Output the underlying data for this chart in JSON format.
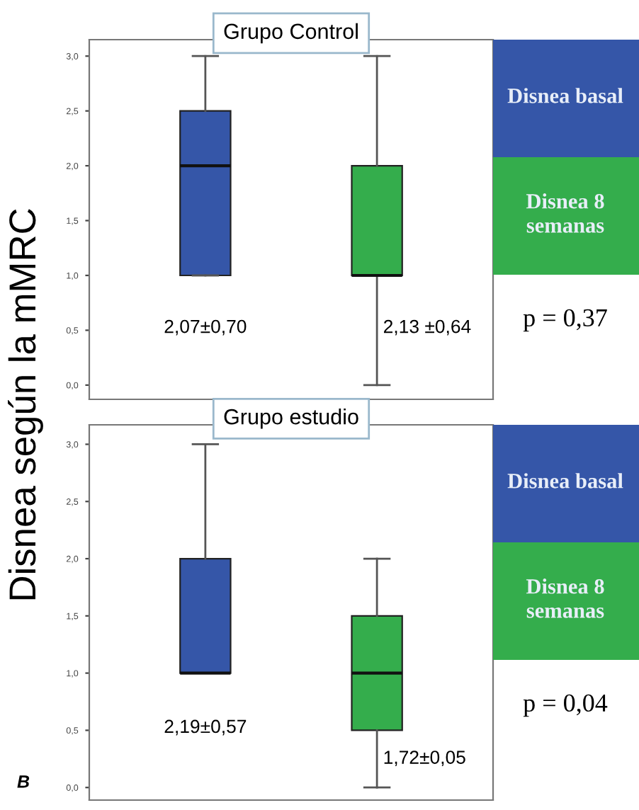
{
  "chart_data": [
    {
      "type": "box",
      "title": "Grupo Control",
      "ylabel": "Disnea según la mMRC",
      "categories": [
        null
      ],
      "ylim": [
        -0.13,
        3.15
      ],
      "yticks": [
        {
          "value": 0,
          "label": "0,0"
        },
        {
          "value": 0.5,
          "label": "0,5"
        },
        {
          "value": 1,
          "label": "1,0"
        },
        {
          "value": 1.5,
          "label": "1,5"
        },
        {
          "value": 2,
          "label": "2,0"
        },
        {
          "value": 2.5,
          "label": "2,5"
        },
        {
          "value": 3,
          "label": "3,0"
        }
      ],
      "series": [
        {
          "name": "Disnea basal",
          "color": "#3556a8",
          "boxes": [
            {
              "low": 1.0,
              "q1": 1.0,
              "median": 2.0,
              "q3": 2.5,
              "high": 3.0
            }
          ]
        },
        {
          "name": "Disnea 8 semanas",
          "color": "#34ad4c",
          "boxes": [
            {
              "low": 0.0,
              "q1": 1.0,
              "median": 1.0,
              "q3": 2.0,
              "high": 3.0
            }
          ]
        }
      ],
      "annotations": [
        "2,07±0,70",
        "2,13 ±0,64",
        "p = 0,37"
      ],
      "legend": "right",
      "grid": false
    },
    {
      "type": "box",
      "title": "Grupo estudio",
      "categories": [
        null
      ],
      "ylim": [
        -0.11,
        3.17
      ],
      "yticks": [
        {
          "value": 0,
          "label": "0,0"
        },
        {
          "value": 0.5,
          "label": "0,5"
        },
        {
          "value": 1,
          "label": "1,0"
        },
        {
          "value": 1.5,
          "label": "1,5"
        },
        {
          "value": 2,
          "label": "2,0"
        },
        {
          "value": 2.5,
          "label": "2,5"
        },
        {
          "value": 3,
          "label": "3,0"
        }
      ],
      "series": [
        {
          "name": "Disnea basal",
          "color": "#3556a8",
          "boxes": [
            {
              "low": 1.0,
              "q1": 1.0,
              "median": 1.0,
              "q3": 2.0,
              "high": 3.0
            }
          ]
        },
        {
          "name": "Disnea 8 semanas",
          "color": "#34ad4c",
          "boxes": [
            {
              "low": 0.0,
              "q1": 0.5,
              "median": 1.0,
              "q3": 1.5,
              "high": 2.0
            }
          ]
        }
      ],
      "annotations": [
        "2,19±0,57",
        "1,72±0,05",
        "p = 0,04",
        "B"
      ],
      "legend": "right",
      "grid": false
    }
  ]
}
